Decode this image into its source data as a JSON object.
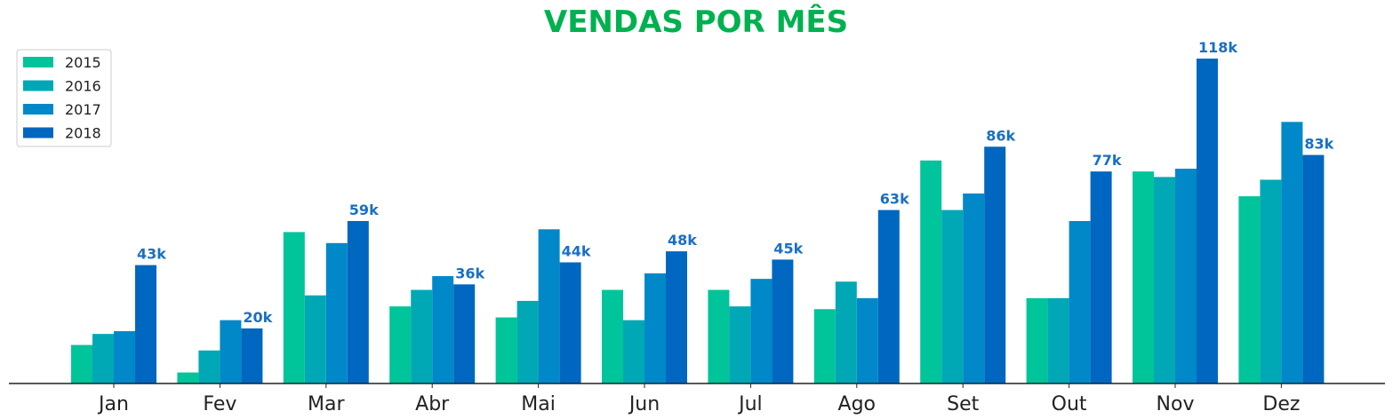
{
  "chart_data": {
    "type": "bar",
    "title": "VENDAS POR MÊS",
    "xlabel": "",
    "ylabel": "",
    "categories": [
      "Jan",
      "Fev",
      "Mar",
      "Abr",
      "Mai",
      "Jun",
      "Jul",
      "Ago",
      "Set",
      "Out",
      "Nov",
      "Dez"
    ],
    "series": [
      {
        "name": "2015",
        "color": "#00c49a",
        "values": [
          14,
          4,
          55,
          28,
          24,
          34,
          34,
          27,
          81,
          31,
          77,
          68
        ]
      },
      {
        "name": "2016",
        "color": "#00a8b5",
        "values": [
          18,
          12,
          32,
          34,
          30,
          23,
          28,
          37,
          63,
          31,
          75,
          74
        ]
      },
      {
        "name": "2017",
        "color": "#0088c9",
        "values": [
          19,
          23,
          51,
          39,
          56,
          40,
          38,
          31,
          69,
          59,
          78,
          95
        ]
      },
      {
        "name": "2018",
        "color": "#0067c0",
        "values": [
          43,
          20,
          59,
          36,
          44,
          48,
          45,
          63,
          86,
          77,
          118,
          83
        ]
      }
    ],
    "data_labels": [
      "43k",
      "20k",
      "59k",
      "36k",
      "44k",
      "48k",
      "45k",
      "63k",
      "86k",
      "77k",
      "118k",
      "83k"
    ],
    "ylim": [
      0,
      120
    ],
    "grid": false,
    "legend_position": "top-left",
    "title_color": "#00b14f",
    "label_color": "#1a6fc4",
    "axis_color": "#222222"
  }
}
